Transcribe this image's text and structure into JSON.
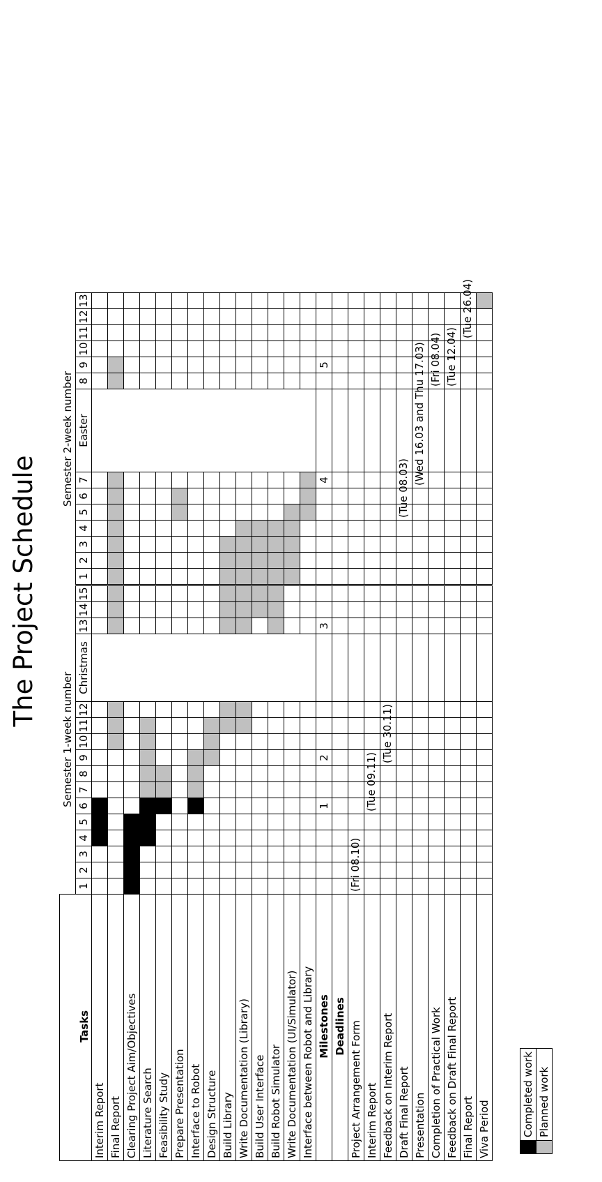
{
  "title": "The Project Schedule",
  "headers": {
    "tasks": "Tasks",
    "sem1": "Semester 1-week number",
    "sem2": "Semester 2-week number",
    "christmas": "Christmas",
    "easter": "Easter"
  },
  "sem1_weeks": [
    "1",
    "2",
    "3",
    "4",
    "5",
    "6",
    "7",
    "8",
    "9",
    "10",
    "11",
    "12"
  ],
  "sem1b_weeks": [
    "13",
    "14",
    "15"
  ],
  "sem2a_weeks": [
    "1",
    "2",
    "3",
    "4",
    "5",
    "6",
    "7"
  ],
  "sem2b_weeks": [
    "8",
    "9",
    "10",
    "11",
    "12",
    "13"
  ],
  "tasks": [
    {
      "label": "Interim Report"
    },
    {
      "label": "Final Report"
    },
    {
      "label": "Clearing Project Aim/Objectives"
    },
    {
      "label": "Literature Search"
    },
    {
      "label": "Feasibility Study"
    },
    {
      "label": "Prepare Presentation"
    },
    {
      "label": "Interface to Robot"
    },
    {
      "label": "Design Structure"
    },
    {
      "label": "Build Library"
    },
    {
      "label": "Write Documentation (Library)"
    },
    {
      "label": "Build User Interface"
    },
    {
      "label": "Build Robot Simulator"
    },
    {
      "label": "Write Documentation (UI/Simulator)"
    },
    {
      "label": "Interface between Robot and Library"
    }
  ],
  "milestones": {
    "label": "Milestones",
    "m1": "1",
    "m2": "2",
    "m3": "3",
    "m4": "4",
    "m5": "5"
  },
  "deadlines_label": "Deadlines",
  "deadlines": [
    {
      "label": "Project Arrangement Form",
      "date": "(Fri 08.10)"
    },
    {
      "label": "Interim Report",
      "date": "(Tue 09.11)"
    },
    {
      "label": "Feedback on Interim Report",
      "date": "(Tue 30.11)"
    },
    {
      "label": "Draft Final Report",
      "date": "(Tue 08.03)"
    },
    {
      "label": "Presentation",
      "date": "(Wed 16.03 and Thu 17.03)"
    },
    {
      "label": "Completion of Practical Work",
      "date": "(Fri 08.04)"
    },
    {
      "label": "Feedback on Draft Final Report",
      "date": "(Tue 12.04)"
    },
    {
      "label": "Final Report",
      "date": "(Tue 26.04)"
    },
    {
      "label": "Viva Period",
      "date": ""
    }
  ],
  "legend": {
    "completed": "Completed work",
    "planned": "Planned work",
    "completed_color": "#000000",
    "planned_color": "#c0c0c0"
  }
}
